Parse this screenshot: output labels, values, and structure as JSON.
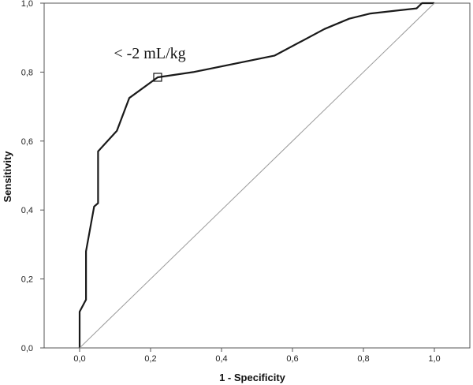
{
  "chart_data": {
    "type": "line",
    "title": "",
    "xlabel": "1 - Specificity",
    "ylabel": "Sensitivity",
    "xlim": [
      -0.1,
      1.1
    ],
    "ylim": [
      0.0,
      1.0
    ],
    "x_ticks": [
      "0,0",
      "0,2",
      "0,4",
      "0,6",
      "0,8",
      "1,0"
    ],
    "y_ticks": [
      "0,0",
      "0,2",
      "0,4",
      "0,6",
      "0,8",
      "1,0"
    ],
    "grid": false,
    "series": [
      {
        "role": "roc-curve",
        "color": "#1a1a1a",
        "x": [
          0.0,
          0.0,
          0.018,
          0.018,
          0.041,
          0.052,
          0.052,
          0.105,
          0.14,
          0.22,
          0.32,
          0.55,
          0.69,
          0.76,
          0.82,
          0.95,
          0.965,
          1.0
        ],
        "y": [
          0.0,
          0.105,
          0.14,
          0.28,
          0.41,
          0.42,
          0.57,
          0.63,
          0.725,
          0.785,
          0.8,
          0.848,
          0.925,
          0.955,
          0.97,
          0.985,
          1.0,
          1.0
        ]
      },
      {
        "role": "reference-line",
        "color": "#9a9a9a",
        "x": [
          0.0,
          1.0
        ],
        "y": [
          0.0,
          1.0
        ]
      }
    ],
    "annotations": [
      {
        "text": "< -2 mL/kg",
        "x": 0.22,
        "y": 0.785
      }
    ]
  }
}
